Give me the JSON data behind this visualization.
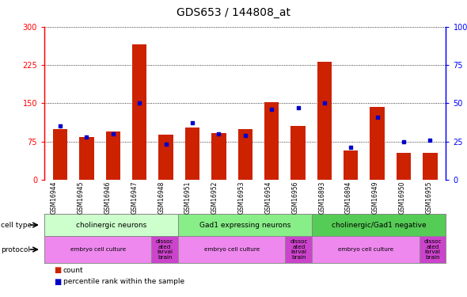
{
  "title": "GDS653 / 144808_at",
  "samples": [
    "GSM16944",
    "GSM16945",
    "GSM16946",
    "GSM16947",
    "GSM16948",
    "GSM16951",
    "GSM16952",
    "GSM16953",
    "GSM16954",
    "GSM16956",
    "GSM16893",
    "GSM16894",
    "GSM16949",
    "GSM16950",
    "GSM16955"
  ],
  "counts": [
    100,
    83,
    95,
    265,
    88,
    103,
    92,
    100,
    152,
    105,
    232,
    58,
    142,
    52,
    53
  ],
  "percentile": [
    35,
    28,
    30,
    50,
    23,
    37,
    30,
    29,
    46,
    47,
    50,
    21,
    41,
    25,
    26
  ],
  "cell_type_groups": [
    {
      "label": "cholinergic neurons",
      "start": 0,
      "end": 5,
      "color": "#ccffcc"
    },
    {
      "label": "Gad1 expressing neurons",
      "start": 5,
      "end": 10,
      "color": "#88ee88"
    },
    {
      "label": "cholinergic/Gad1 negative",
      "start": 10,
      "end": 15,
      "color": "#55cc55"
    }
  ],
  "protocol_groups": [
    {
      "label": "embryo cell culture",
      "start": 0,
      "end": 4,
      "color": "#ee88ee"
    },
    {
      "label": "dissoc\nated\nlarval\nbrain",
      "start": 4,
      "end": 5,
      "color": "#cc44cc"
    },
    {
      "label": "embryo cell culture",
      "start": 5,
      "end": 9,
      "color": "#ee88ee"
    },
    {
      "label": "dissoc\nated\nlarval\nbrain",
      "start": 9,
      "end": 10,
      "color": "#cc44cc"
    },
    {
      "label": "embryo cell culture",
      "start": 10,
      "end": 14,
      "color": "#ee88ee"
    },
    {
      "label": "dissoc\nated\nlarval\nbrain",
      "start": 14,
      "end": 15,
      "color": "#cc44cc"
    }
  ],
  "bar_color": "#cc2200",
  "dot_color": "#0000cc",
  "left_ylim": [
    0,
    300
  ],
  "right_ylim": [
    0,
    100
  ],
  "left_yticks": [
    0,
    75,
    150,
    225,
    300
  ],
  "right_yticks": [
    0,
    25,
    50,
    75,
    100
  ],
  "left_yticklabels": [
    "0",
    "75",
    "150",
    "225",
    "300"
  ],
  "right_yticklabels": [
    "0",
    "25",
    "50",
    "75",
    "100%"
  ],
  "sample_bg_color": "#cccccc",
  "title_fontsize": 10,
  "tick_fontsize": 7,
  "label_fontsize": 7.5
}
